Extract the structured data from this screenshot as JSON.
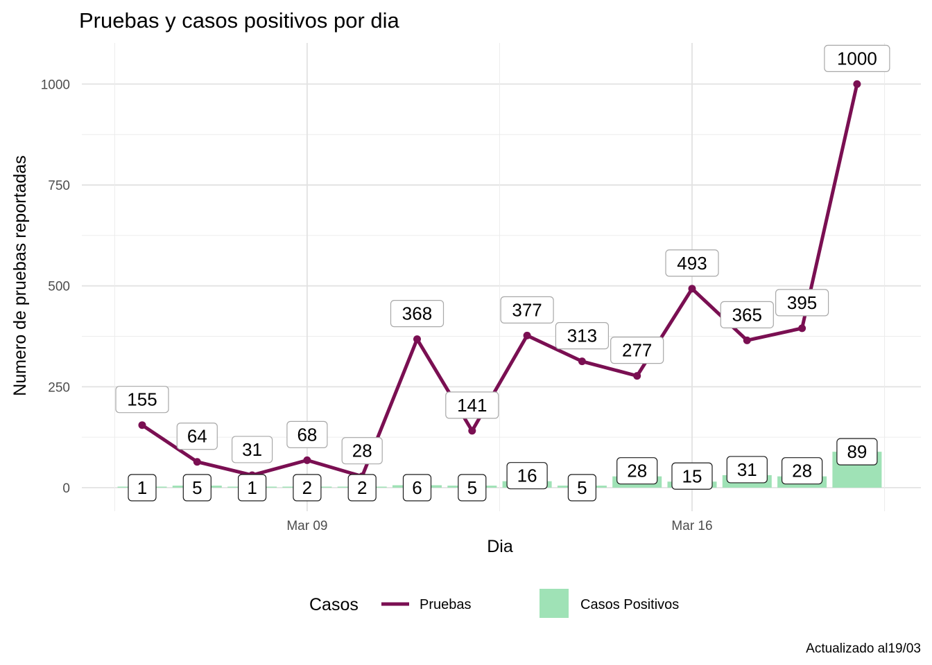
{
  "chart_data": {
    "type": "line",
    "title": "Pruebas y casos positivos por dia",
    "xlabel": "Dia",
    "ylabel": "Numero de pruebas reportadas",
    "x_tick_labels": [
      "Mar 09",
      "Mar 16"
    ],
    "y_ticks": [
      "0",
      "250",
      "500",
      "750",
      "1000"
    ],
    "ylim": [
      0,
      1100
    ],
    "x": [
      "2020-03-06",
      "2020-03-07",
      "2020-03-08",
      "2020-03-09",
      "2020-03-10",
      "2020-03-11",
      "2020-03-12",
      "2020-03-13",
      "2020-03-14",
      "2020-03-15",
      "2020-03-16",
      "2020-03-17",
      "2020-03-18",
      "2020-03-19"
    ],
    "series": [
      {
        "name": "Pruebas",
        "type": "line",
        "color": "#7a0f52",
        "values": [
          155,
          64,
          31,
          68,
          28,
          368,
          141,
          377,
          313,
          277,
          493,
          365,
          395,
          1000
        ],
        "labels": [
          "155",
          "64",
          "31",
          "68",
          "28",
          "368",
          "141",
          "377",
          "313",
          "277",
          "493",
          "365",
          "395",
          "1000"
        ]
      },
      {
        "name": "Casos Positivos",
        "type": "bar",
        "color": "#9fe2b6",
        "values": [
          1,
          5,
          1,
          2,
          2,
          6,
          5,
          16,
          5,
          28,
          15,
          31,
          28,
          89
        ],
        "labels": [
          "1",
          "5",
          "1",
          "2",
          "2",
          "6",
          "5",
          "16",
          "5",
          "28",
          "15",
          "31",
          "28",
          "89"
        ]
      }
    ],
    "grid": true,
    "legend": {
      "title": "Casos",
      "position": "bottom"
    }
  },
  "caption": "Actualizado al19/03"
}
